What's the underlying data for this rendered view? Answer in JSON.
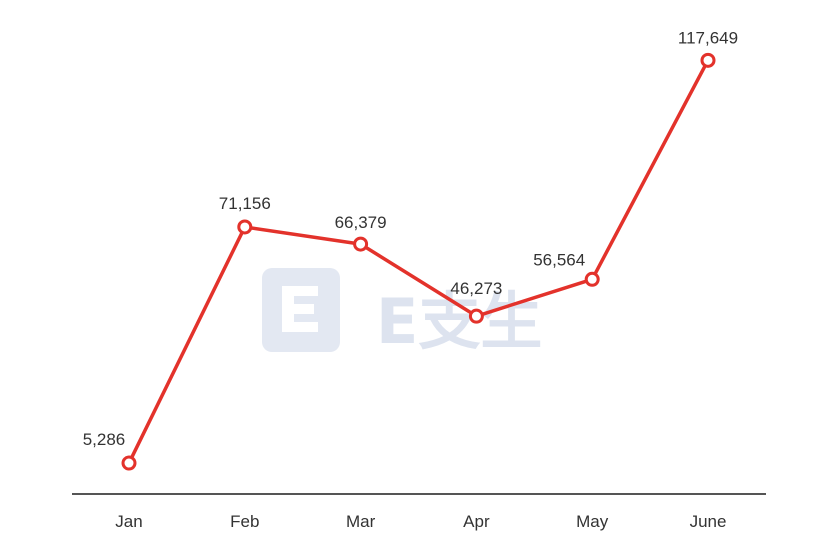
{
  "chart_data": {
    "type": "line",
    "categories": [
      "Jan",
      "Feb",
      "Mar",
      "Apr",
      "May",
      "June"
    ],
    "values": [
      5286,
      71156,
      66379,
      46273,
      56564,
      117649
    ],
    "data_labels": [
      "5,286",
      "71,156",
      "66,379",
      "46,273",
      "56,564",
      "117,649"
    ],
    "title": "",
    "xlabel": "",
    "ylabel": "",
    "ylim": [
      0,
      125000
    ],
    "grid": false,
    "y_axis_visible": false,
    "line_color": "#e3322b",
    "marker_fill": "#ffffff",
    "axis_color": "#555555"
  },
  "watermark": {
    "text": "E支生",
    "color": "#dde3ef"
  }
}
